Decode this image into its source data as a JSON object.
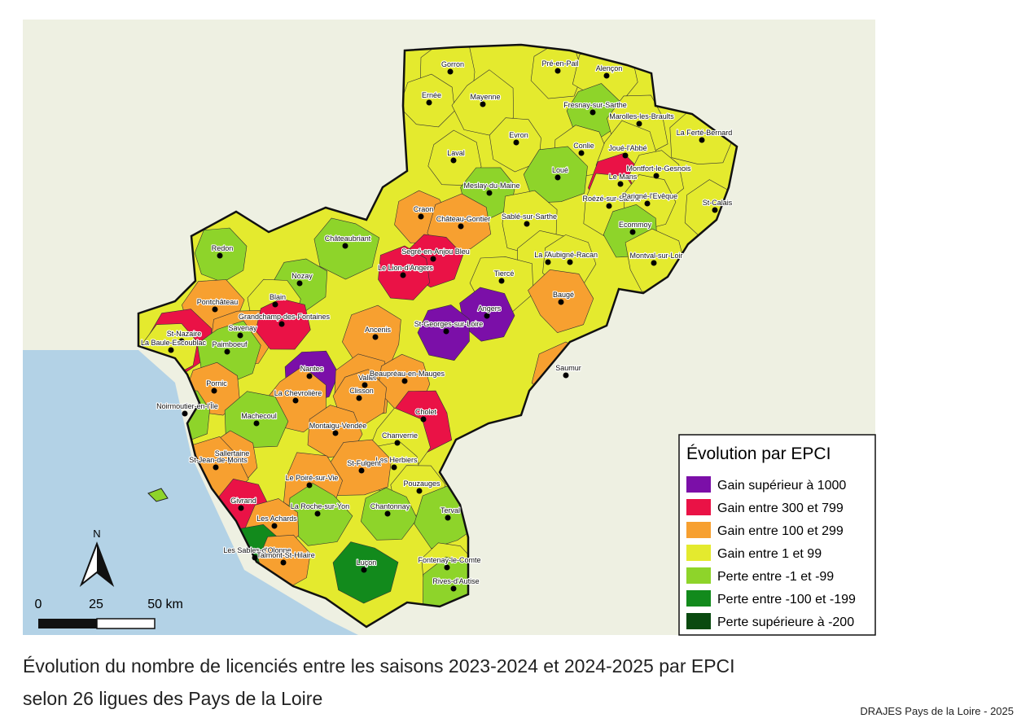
{
  "caption": {
    "line1": "Évolution du nombre de licenciés entre les saisons 2023-2024 et 2024-2025 par EPCI",
    "line2": "selon 26 ligues des Pays de la Loire"
  },
  "credit": "DRAJES Pays de la Loire - 2025",
  "legend": {
    "title": "Évolution par EPCI",
    "items": [
      {
        "label": "Gain supérieur à 1000",
        "color": "#7b0fa8"
      },
      {
        "label": "Gain entre 300 et 799",
        "color": "#ea1246"
      },
      {
        "label": "Gain entre 100 et 299",
        "color": "#f7a030"
      },
      {
        "label": "Gain entre 1 et 99",
        "color": "#e4ea2e"
      },
      {
        "label": "Perte entre -1 et -99",
        "color": "#8ed42a"
      },
      {
        "label": "Perte entre -100 et -199",
        "color": "#128a1c"
      },
      {
        "label": "Perte supérieure à -200",
        "color": "#0a4a10"
      }
    ]
  },
  "north": "N",
  "scale": [
    "0",
    "25",
    "50 km"
  ],
  "cities": [
    {
      "name": "Gorron",
      "color": "#e4ea2e"
    },
    {
      "name": "Pré-en-Pail",
      "color": "#e4ea2e"
    },
    {
      "name": "Alençon",
      "color": "#e4ea2e"
    },
    {
      "name": "Ernée",
      "color": "#e4ea2e"
    },
    {
      "name": "Mayenne",
      "color": "#e4ea2e"
    },
    {
      "name": "Fresnay-sur-Sarthe",
      "color": "#8ed42a"
    },
    {
      "name": "Marolles-les-Braults",
      "color": "#e4ea2e"
    },
    {
      "name": "Evron",
      "color": "#e4ea2e"
    },
    {
      "name": "La Ferté-Bernard",
      "color": "#e4ea2e"
    },
    {
      "name": "Conlie",
      "color": "#e4ea2e"
    },
    {
      "name": "Joué-l'Abbé",
      "color": "#e4ea2e"
    },
    {
      "name": "Laval",
      "color": "#e4ea2e"
    },
    {
      "name": "Le Mans",
      "color": "#ea1246"
    },
    {
      "name": "Montfort-le-Gesnois",
      "color": "#e4ea2e"
    },
    {
      "name": "Loué",
      "color": "#8ed42a"
    },
    {
      "name": "Meslay-du-Maine",
      "color": "#8ed42a"
    },
    {
      "name": "Roézé-sur-Sarthe",
      "color": "#e4ea2e"
    },
    {
      "name": "Parigné-l'Evêque",
      "color": "#e4ea2e"
    },
    {
      "name": "St-Calais",
      "color": "#e4ea2e"
    },
    {
      "name": "Craon",
      "color": "#f7a030"
    },
    {
      "name": "Château-Gontier",
      "color": "#f7a030"
    },
    {
      "name": "Ecommoy",
      "color": "#8ed42a"
    },
    {
      "name": "Sablé-sur-Sarthe",
      "color": "#e4ea2e"
    },
    {
      "name": "Redon",
      "color": "#8ed42a"
    },
    {
      "name": "Châteaubriant",
      "color": "#8ed42a"
    },
    {
      "name": "Segré-en-Anjou Bleu",
      "color": "#ea1246"
    },
    {
      "name": "La Flèche",
      "color": "#e4ea2e"
    },
    {
      "name": "Aubigné-Racan",
      "color": "#e4ea2e"
    },
    {
      "name": "Montval-sur-Loir",
      "color": "#e4ea2e"
    },
    {
      "name": "Le Lion-d'Angers",
      "color": "#ea1246"
    },
    {
      "name": "Tiercé",
      "color": "#e4ea2e"
    },
    {
      "name": "Nozay",
      "color": "#8ed42a"
    },
    {
      "name": "Pontchâteau",
      "color": "#f7a030"
    },
    {
      "name": "Blain",
      "color": "#e4ea2e"
    },
    {
      "name": "Baugé",
      "color": "#f7a030"
    },
    {
      "name": "Angers",
      "color": "#7b0fa8"
    },
    {
      "name": "Savenay",
      "color": "#f7a030"
    },
    {
      "name": "Grandchamp-des-Fontaines",
      "color": "#ea1246"
    },
    {
      "name": "Ancenis",
      "color": "#f7a030"
    },
    {
      "name": "St-Georges-sur-Loire",
      "color": "#7b0fa8"
    },
    {
      "name": "St-Nazaire",
      "color": "#ea1246"
    },
    {
      "name": "La Baule-Escoublac",
      "color": "#e4ea2e"
    },
    {
      "name": "Paimboeuf",
      "color": "#8ed42a"
    },
    {
      "name": "Nantes",
      "color": "#7b0fa8"
    },
    {
      "name": "Vallet",
      "color": "#f7a030"
    },
    {
      "name": "Beaupréau-en-Mauges",
      "color": "#f7a030"
    },
    {
      "name": "Saumur",
      "color": "#f7a030"
    },
    {
      "name": "Pornic",
      "color": "#f7a030"
    },
    {
      "name": "La Chevrolière",
      "color": "#f7a030"
    },
    {
      "name": "Clisson",
      "color": "#f7a030"
    },
    {
      "name": "Cholet",
      "color": "#ea1246"
    },
    {
      "name": "Noirmoutier-en-l'Île",
      "color": "#8ed42a"
    },
    {
      "name": "Machecoul",
      "color": "#8ed42a"
    },
    {
      "name": "Montaigu-Vendée",
      "color": "#f7a030"
    },
    {
      "name": "Chanverrie",
      "color": "#e4ea2e"
    },
    {
      "name": "Sallertaine",
      "color": "#f7a030"
    },
    {
      "name": "St-Jean-de-Monts",
      "color": "#f7a030"
    },
    {
      "name": "Les Herbiers",
      "color": "#e4ea2e"
    },
    {
      "name": "St-Fulgent",
      "color": "#f7a030"
    },
    {
      "name": "Pouzauges",
      "color": "#e4ea2e"
    },
    {
      "name": "Le Poiré-sur-Vie",
      "color": "#f7a030"
    },
    {
      "name": "Givrand",
      "color": "#ea1246"
    },
    {
      "name": "La Roche-sur-Yon",
      "color": "#8ed42a"
    },
    {
      "name": "Chantonnay",
      "color": "#8ed42a"
    },
    {
      "name": "Terval",
      "color": "#8ed42a"
    },
    {
      "name": "Les Achards",
      "color": "#f7a030"
    },
    {
      "name": "Les Sables-d'Olonne",
      "color": "#128a1c"
    },
    {
      "name": "Talmont-St-Hilaire",
      "color": "#f7a030"
    },
    {
      "name": "Luçon",
      "color": "#128a1c"
    },
    {
      "name": "Fontenay-le-Comte",
      "color": "#e4ea2e"
    },
    {
      "name": "Rives-d'Autise",
      "color": "#8ed42a"
    }
  ]
}
